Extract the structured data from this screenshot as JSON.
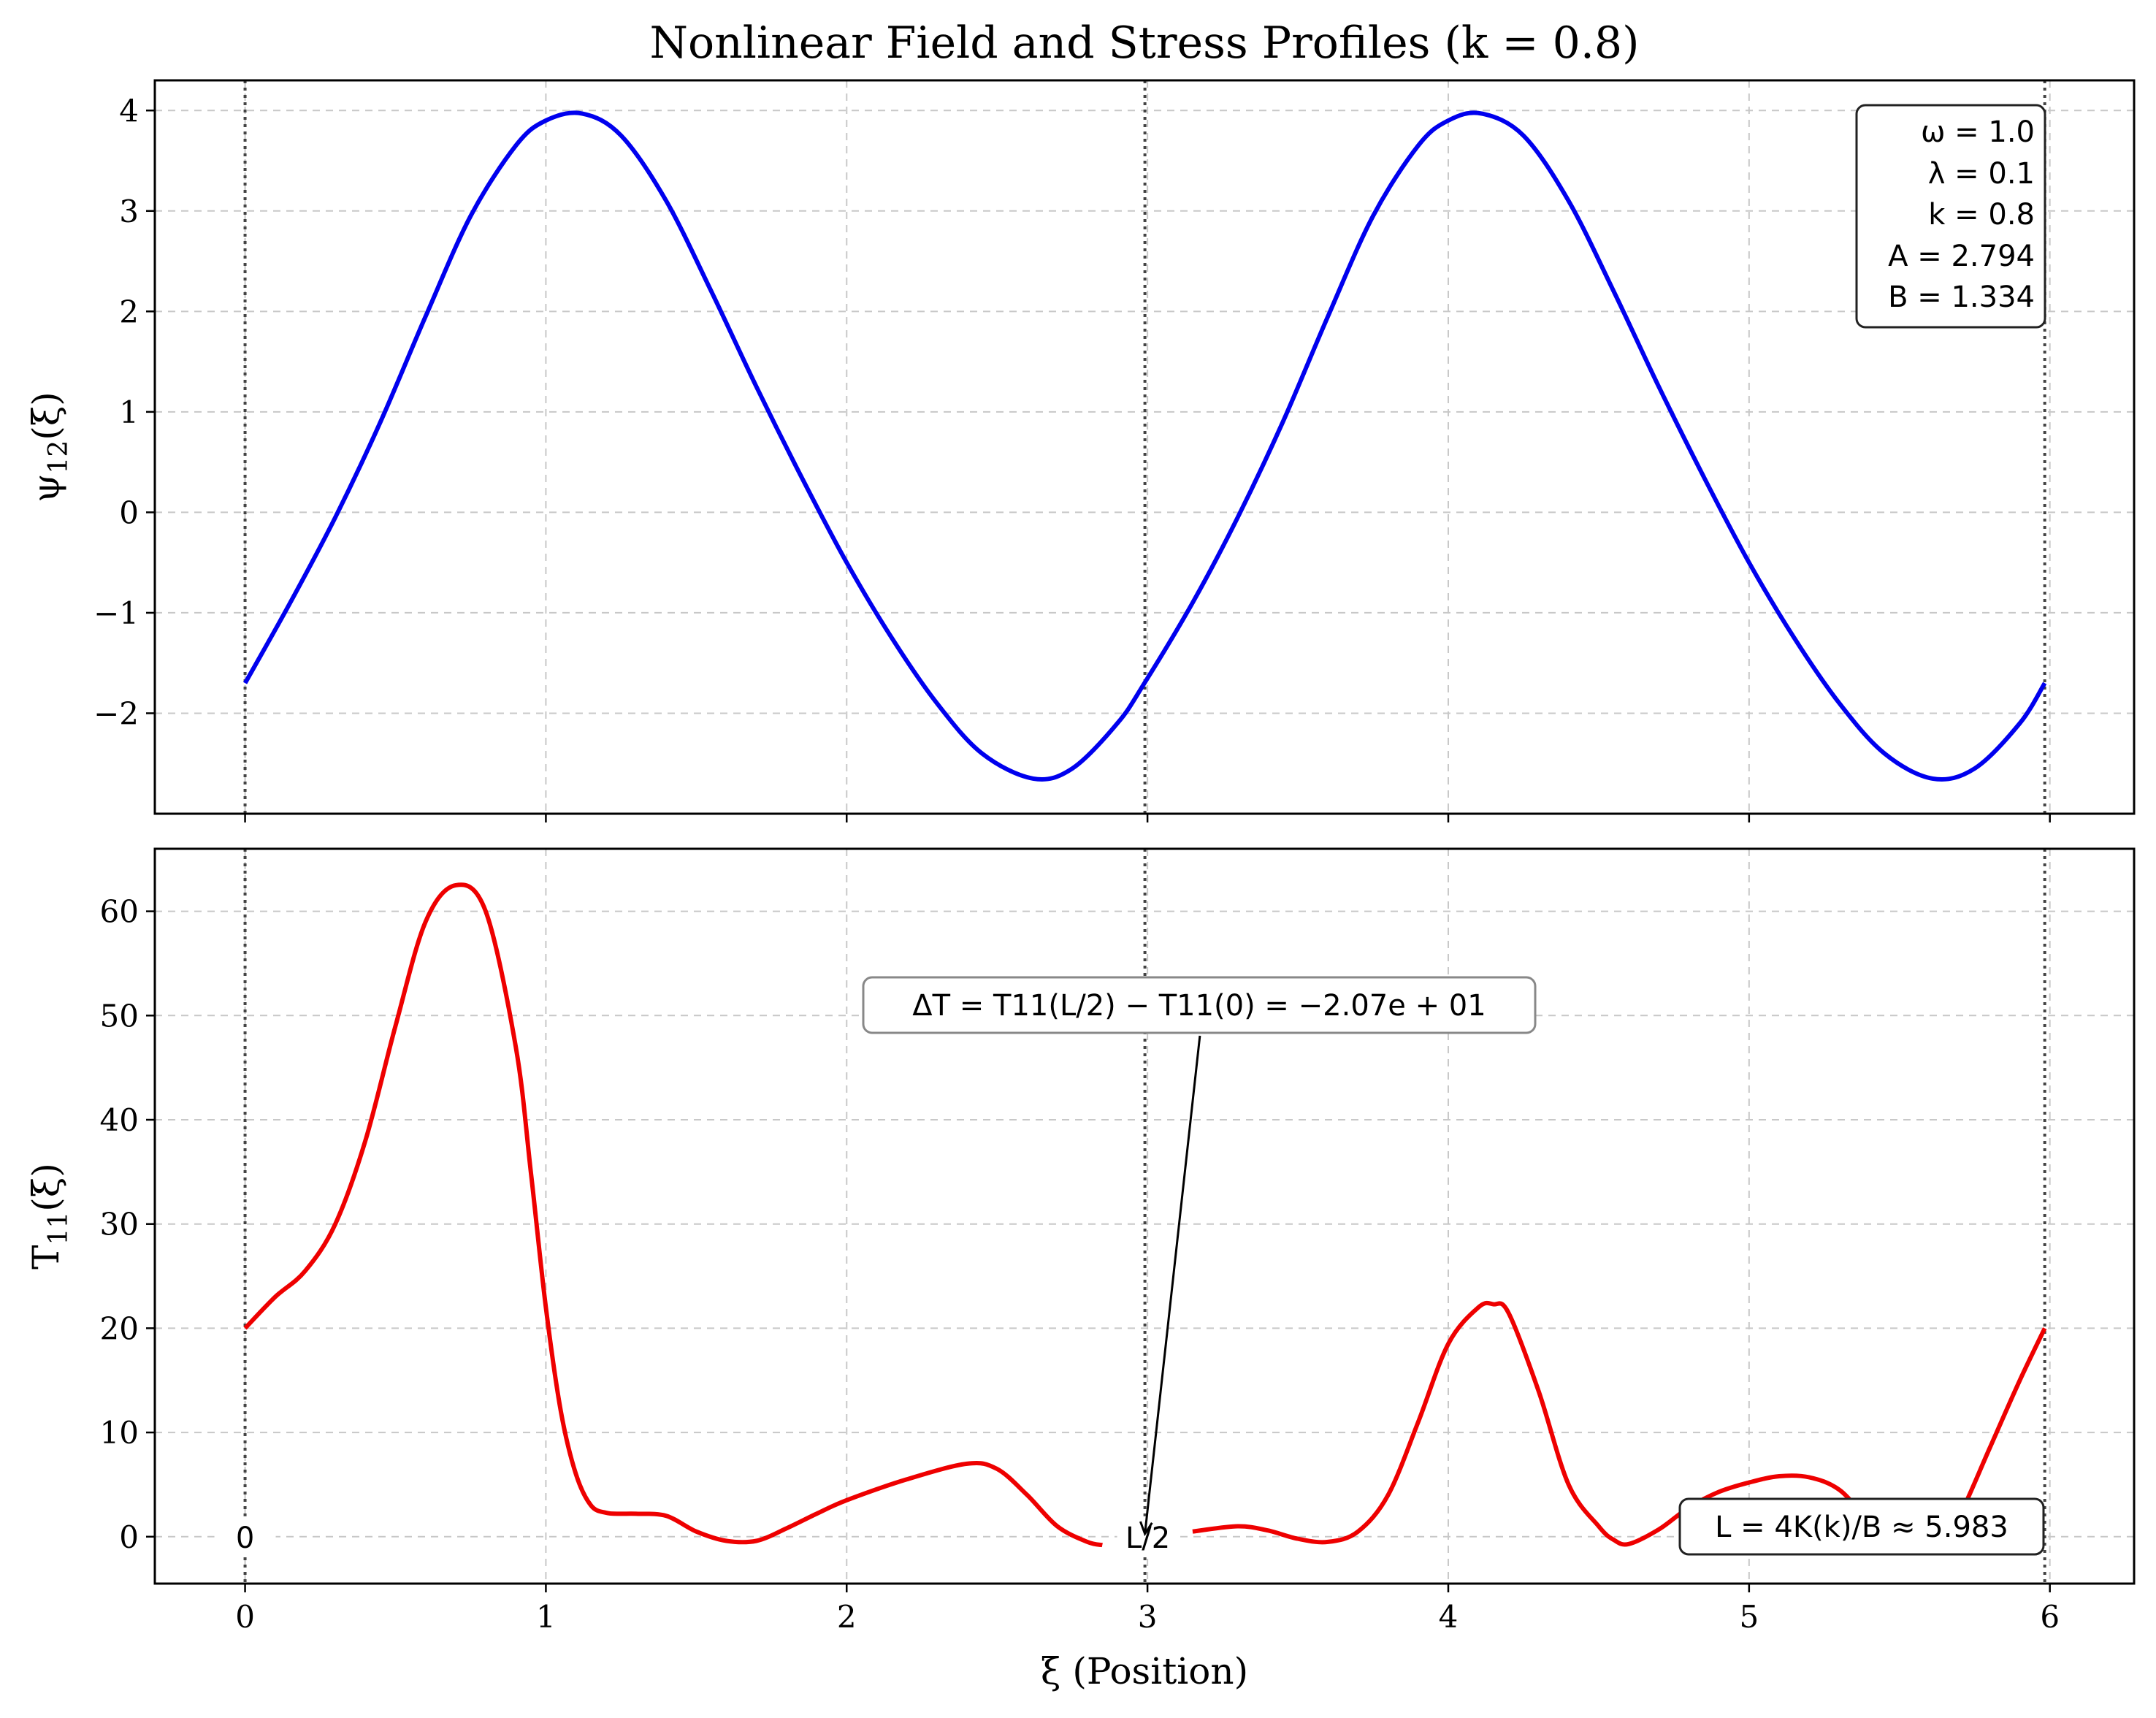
{
  "chart_data": [
    {
      "type": "line",
      "title": "Nonlinear Field and Stress Profiles (k = 0.8)",
      "ylabel": "ψ12(ξ)",
      "xlim": [
        -0.3,
        6.28
      ],
      "ylim": [
        -3.0,
        4.3
      ],
      "xticks": [
        0,
        1,
        2,
        3,
        4,
        5,
        6
      ],
      "yticks": [
        -2,
        -1,
        0,
        1,
        2,
        3,
        4
      ],
      "ytick_labels": [
        "−2",
        "−1",
        "0",
        "1",
        "2",
        "3",
        "4"
      ],
      "grid": true,
      "series": [
        {
          "color": "#0000ee",
          "x": [
            0,
            0.15,
            0.3,
            0.45,
            0.6,
            0.75,
            0.9,
            1.0,
            1.12,
            1.25,
            1.4,
            1.55,
            1.7,
            1.85,
            2.0,
            2.15,
            2.3,
            2.45,
            2.62,
            2.75,
            2.9,
            2.99,
            3.15,
            3.3,
            3.45,
            3.6,
            3.75,
            3.9,
            4.0,
            4.11,
            4.25,
            4.4,
            4.55,
            4.7,
            4.85,
            5.0,
            5.15,
            5.3,
            5.45,
            5.61,
            5.75,
            5.9,
            5.983
          ],
          "y": [
            -1.7,
            -0.9,
            -0.05,
            0.9,
            1.95,
            2.95,
            3.65,
            3.9,
            3.97,
            3.75,
            3.1,
            2.2,
            1.25,
            0.35,
            -0.5,
            -1.25,
            -1.9,
            -2.4,
            -2.65,
            -2.55,
            -2.1,
            -1.7,
            -0.9,
            -0.05,
            0.9,
            1.95,
            2.95,
            3.65,
            3.9,
            3.97,
            3.75,
            3.1,
            2.2,
            1.25,
            0.35,
            -0.5,
            -1.25,
            -1.9,
            -2.4,
            -2.65,
            -2.55,
            -2.1,
            -1.7
          ]
        }
      ],
      "vlines": [
        0,
        2.9915,
        5.983
      ],
      "info_box": [
        "ω = 1.0",
        "λ = 0.1",
        "k = 0.8",
        "A = 2.794",
        "B = 1.334"
      ]
    },
    {
      "type": "line",
      "xlabel": "ξ (Position)",
      "ylabel": "T11(ξ)",
      "xlim": [
        -0.3,
        6.28
      ],
      "ylim": [
        -4.5,
        66
      ],
      "xticks": [
        0,
        1,
        2,
        3,
        4,
        5,
        6
      ],
      "xtick_labels": [
        "0",
        "1",
        "2",
        "3",
        "4",
        "5",
        "6"
      ],
      "yticks": [
        0,
        10,
        20,
        30,
        40,
        50,
        60
      ],
      "ytick_labels": [
        "0",
        "10",
        "20",
        "30",
        "40",
        "50",
        "60"
      ],
      "grid": true,
      "series": [
        {
          "color": "#ee0000",
          "x": [
            0,
            0.1,
            0.2,
            0.3,
            0.4,
            0.5,
            0.6,
            0.7,
            0.8,
            0.9,
            0.95,
            1.0,
            1.05,
            1.1,
            1.15,
            1.2,
            1.25,
            1.3,
            1.4,
            1.5,
            1.6,
            1.7,
            1.8,
            1.9,
            2.0,
            2.2,
            2.4,
            2.5,
            2.6,
            2.7,
            2.8,
            2.85
          ],
          "y": [
            20,
            23,
            25.5,
            30,
            38,
            49,
            59,
            62.5,
            60,
            47,
            35,
            22,
            12,
            6,
            3,
            2.3,
            2.2,
            2.2,
            2.0,
            0.5,
            -0.4,
            -0.4,
            0.8,
            2.2,
            3.5,
            5.5,
            7.0,
            6.5,
            4.0,
            1.0,
            -0.5,
            -0.8
          ]
        },
        {
          "color": "#ee0000",
          "x": [
            3.15,
            3.3,
            3.4,
            3.5,
            3.6,
            3.7,
            3.8,
            3.9,
            4.0,
            4.1,
            4.15,
            4.2,
            4.3,
            4.4,
            4.5,
            4.55,
            4.6,
            4.7,
            4.8,
            4.9,
            5.0,
            5.1,
            5.2,
            5.3,
            5.4,
            5.5,
            5.55,
            5.6,
            5.65,
            5.7,
            5.8,
            5.9,
            5.983
          ],
          "y": [
            0.5,
            1.0,
            0.6,
            -0.2,
            -0.5,
            0.5,
            4.0,
            11.0,
            18.5,
            22.0,
            22.3,
            21.5,
            14.0,
            5.0,
            1.0,
            -0.3,
            -0.7,
            0.7,
            2.8,
            4.3,
            5.2,
            5.8,
            5.7,
            4.5,
            1.5,
            -0.8,
            -1.0,
            -0.7,
            0.2,
            2.0,
            8.5,
            15.0,
            20.0
          ]
        }
      ],
      "vlines": [
        0,
        2.9915,
        5.983
      ],
      "point_labels": [
        {
          "text": "0",
          "x": 0,
          "y": 0
        },
        {
          "text": "L/2",
          "x": 2.9915,
          "y": 0
        }
      ],
      "annotation": {
        "text": "ΔT = T11(L/2) − T11(0) = −2.07e + 01",
        "x_text": 3.15,
        "y_text": 51,
        "x_target": 2.9915,
        "y_target": 0
      },
      "length_label": "L = 4K(k)/B ≈ 5.983"
    }
  ]
}
